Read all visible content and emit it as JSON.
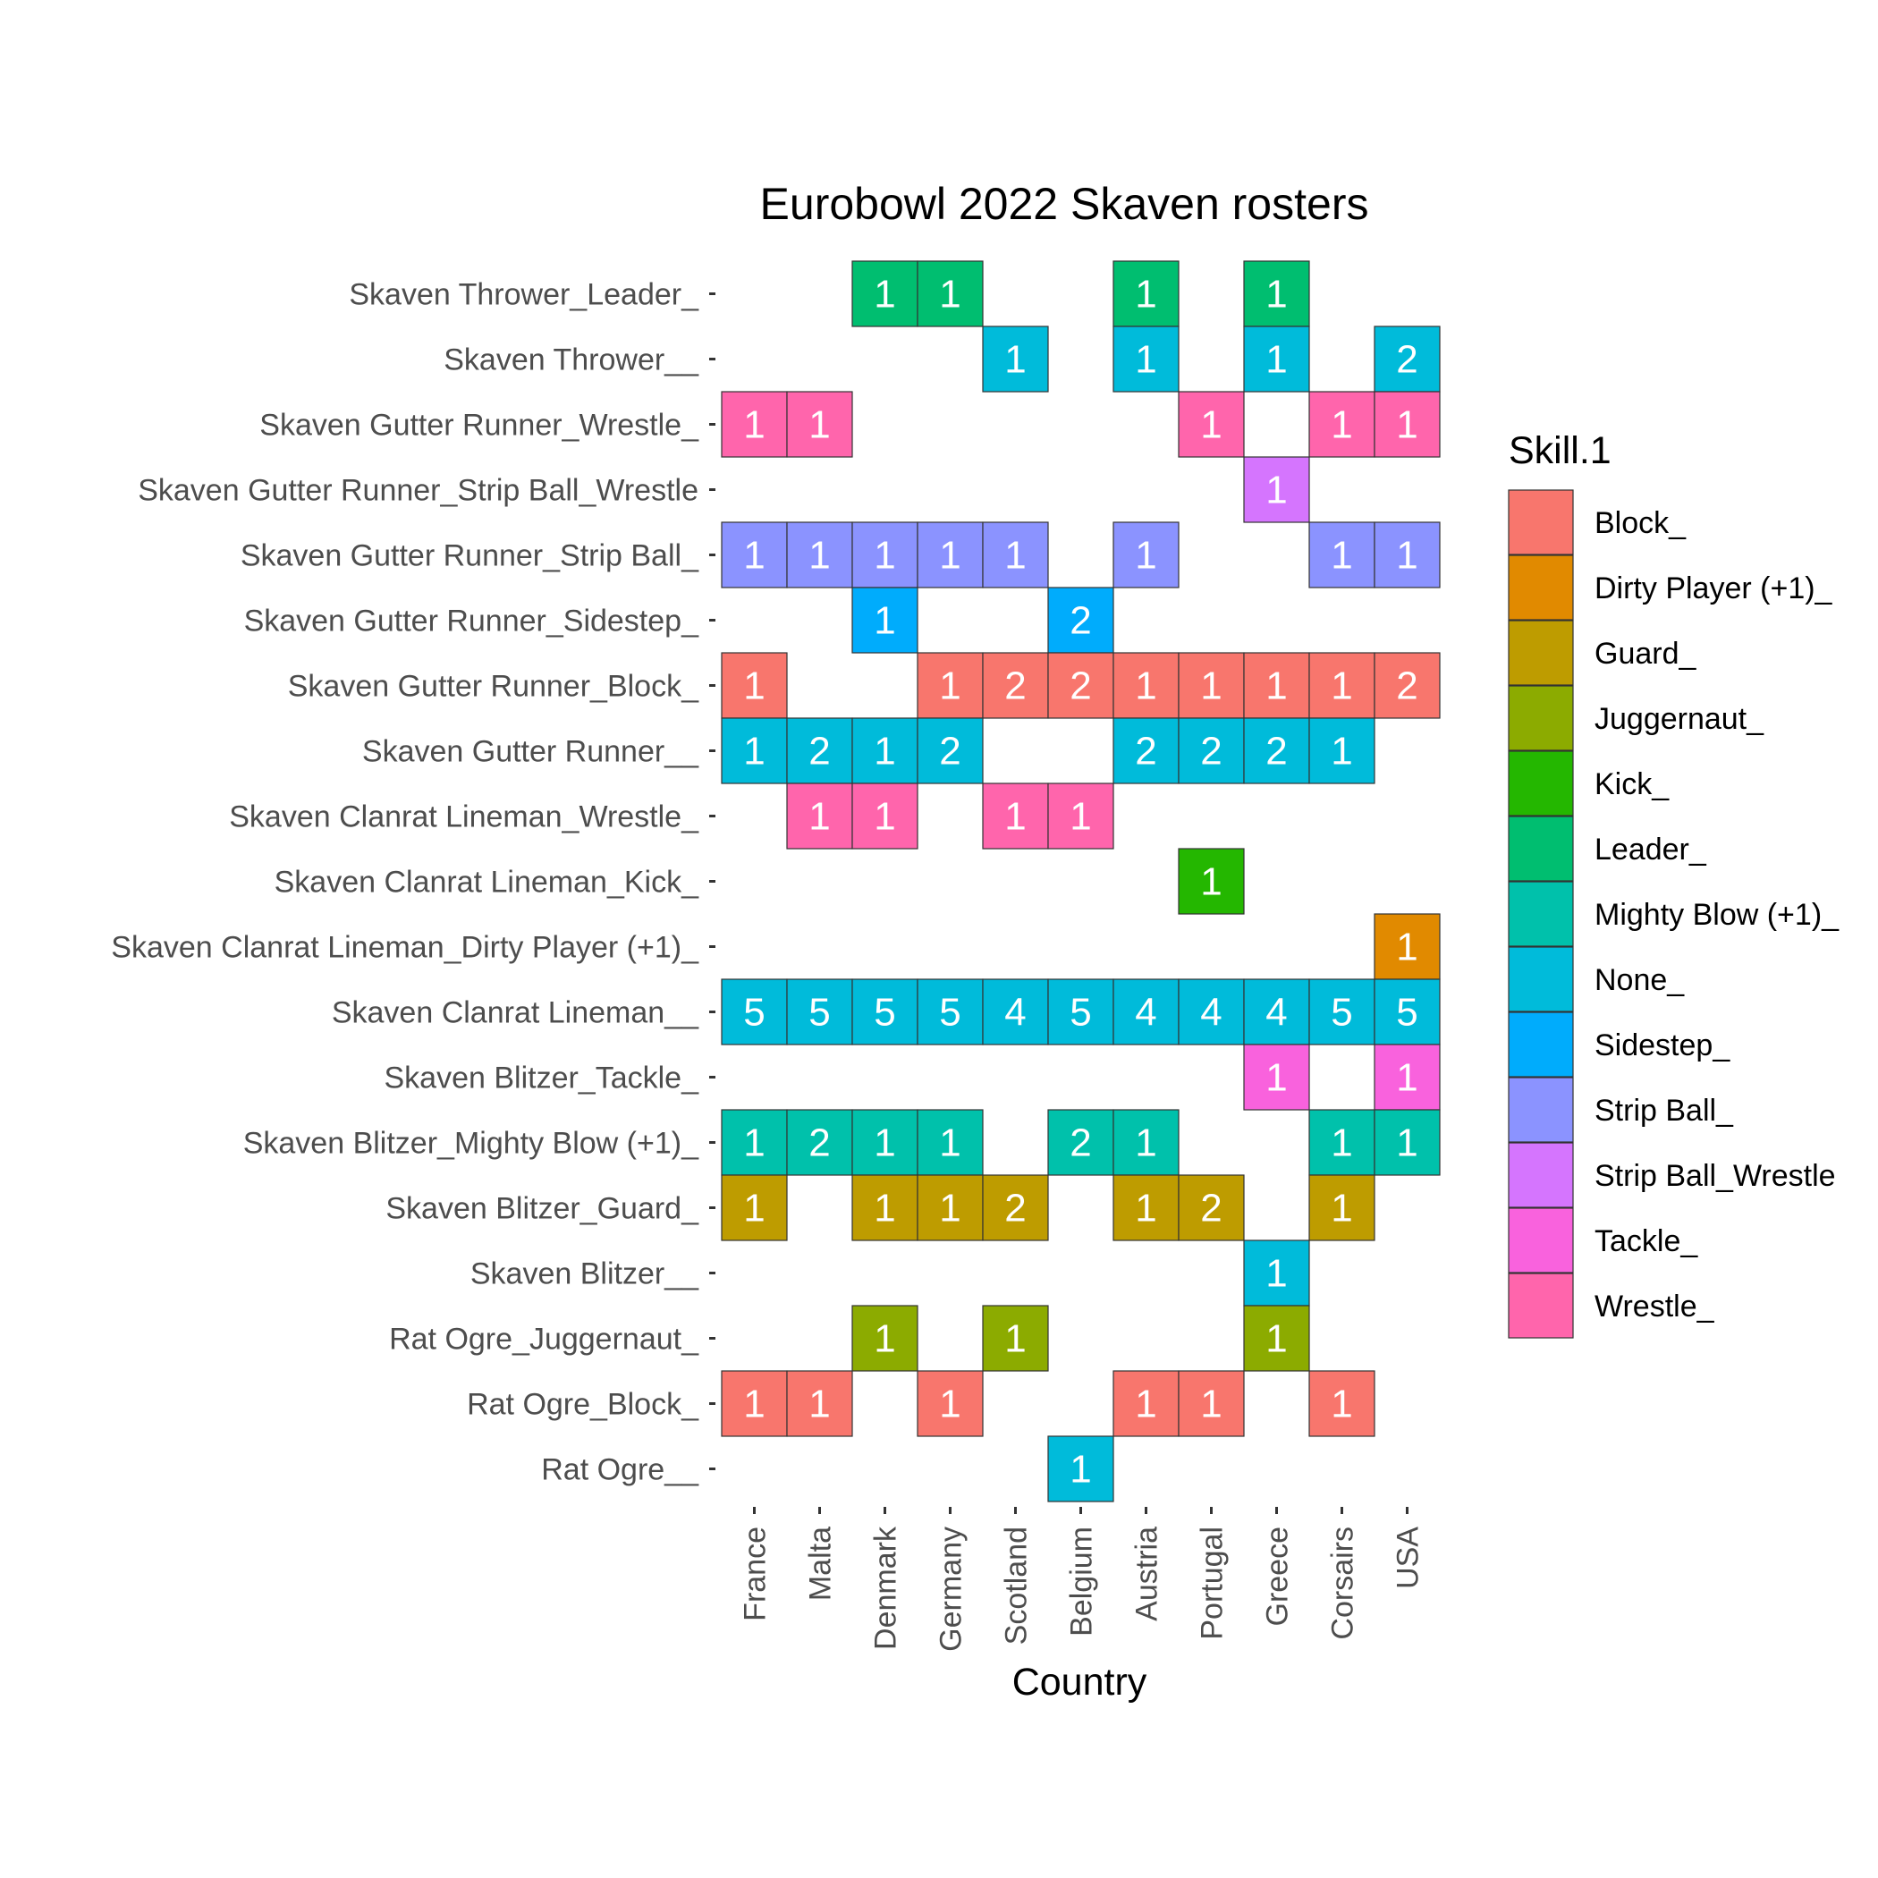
{
  "chart_data": {
    "type": "heatmap",
    "title": "Eurobowl 2022 Skaven rosters",
    "xlabel": "Country",
    "ylabel": "",
    "x_categories": [
      "France",
      "Malta",
      "Denmark",
      "Germany",
      "Scotland",
      "Belgium",
      "Austria",
      "Portugal",
      "Greece",
      "Corsairs",
      "USA"
    ],
    "y_categories": [
      "Skaven Thrower_Leader_",
      "Skaven Thrower__",
      "Skaven Gutter Runner_Wrestle_",
      "Skaven Gutter Runner_Strip Ball_Wrestle",
      "Skaven Gutter Runner_Strip Ball_",
      "Skaven Gutter Runner_Sidestep_",
      "Skaven Gutter Runner_Block_",
      "Skaven Gutter Runner__",
      "Skaven Clanrat Lineman_Wrestle_",
      "Skaven Clanrat Lineman_Kick_",
      "Skaven Clanrat Lineman_Dirty Player (+1)_",
      "Skaven Clanrat Lineman__",
      "Skaven Blitzer_Tackle_",
      "Skaven Blitzer_Mighty Blow (+1)_",
      "Skaven Blitzer_Guard_",
      "Skaven Blitzer__",
      "Rat Ogre_Juggernaut_",
      "Rat Ogre_Block_",
      "Rat Ogre__"
    ],
    "legend": {
      "title": "Skill.1",
      "position": "right",
      "items": [
        {
          "label": "Block_",
          "color": "#F8766D"
        },
        {
          "label": "Dirty Player (+1)_",
          "color": "#E18A00"
        },
        {
          "label": "Guard_",
          "color": "#BE9C00"
        },
        {
          "label": "Juggernaut_",
          "color": "#8CAB00"
        },
        {
          "label": "Kick_",
          "color": "#24B700"
        },
        {
          "label": "Leader_",
          "color": "#00BE70"
        },
        {
          "label": "Mighty Blow (+1)_",
          "color": "#00C1AB"
        },
        {
          "label": "None_",
          "color": "#00BBDA"
        },
        {
          "label": "Sidestep_",
          "color": "#00ACFC"
        },
        {
          "label": "Strip Ball_",
          "color": "#8B93FF"
        },
        {
          "label": "Strip Ball_Wrestle",
          "color": "#D575FE"
        },
        {
          "label": "Tackle_",
          "color": "#F962DD"
        },
        {
          "label": "Wrestle_",
          "color": "#FF65AC"
        }
      ]
    },
    "cells": [
      {
        "row": "Skaven Thrower_Leader_",
        "skill": "Leader_",
        "values": [
          null,
          null,
          1,
          1,
          null,
          null,
          1,
          null,
          1,
          null,
          null
        ]
      },
      {
        "row": "Skaven Thrower__",
        "skill": "None_",
        "values": [
          null,
          null,
          null,
          null,
          1,
          null,
          1,
          null,
          1,
          null,
          2
        ]
      },
      {
        "row": "Skaven Gutter Runner_Wrestle_",
        "skill": "Wrestle_",
        "values": [
          1,
          1,
          null,
          null,
          null,
          null,
          null,
          1,
          null,
          1,
          1
        ]
      },
      {
        "row": "Skaven Gutter Runner_Strip Ball_Wrestle",
        "skill": "Strip Ball_Wrestle",
        "values": [
          null,
          null,
          null,
          null,
          null,
          null,
          null,
          null,
          1,
          null,
          null
        ]
      },
      {
        "row": "Skaven Gutter Runner_Strip Ball_",
        "skill": "Strip Ball_",
        "values": [
          1,
          1,
          1,
          1,
          1,
          null,
          1,
          null,
          null,
          1,
          1
        ]
      },
      {
        "row": "Skaven Gutter Runner_Sidestep_",
        "skill": "Sidestep_",
        "values": [
          null,
          null,
          1,
          null,
          null,
          2,
          null,
          null,
          null,
          null,
          null
        ]
      },
      {
        "row": "Skaven Gutter Runner_Block_",
        "skill": "Block_",
        "values": [
          1,
          null,
          null,
          1,
          2,
          2,
          1,
          1,
          1,
          1,
          2
        ]
      },
      {
        "row": "Skaven Gutter Runner__",
        "skill": "None_",
        "values": [
          1,
          2,
          1,
          2,
          null,
          null,
          2,
          2,
          2,
          1,
          null
        ]
      },
      {
        "row": "Skaven Clanrat Lineman_Wrestle_",
        "skill": "Wrestle_",
        "values": [
          null,
          1,
          1,
          null,
          1,
          1,
          null,
          null,
          null,
          null,
          null
        ]
      },
      {
        "row": "Skaven Clanrat Lineman_Kick_",
        "skill": "Kick_",
        "values": [
          null,
          null,
          null,
          null,
          null,
          null,
          null,
          1,
          null,
          null,
          null
        ]
      },
      {
        "row": "Skaven Clanrat Lineman_Dirty Player (+1)_",
        "skill": "Dirty Player (+1)_",
        "values": [
          null,
          null,
          null,
          null,
          null,
          null,
          null,
          null,
          null,
          null,
          1
        ]
      },
      {
        "row": "Skaven Clanrat Lineman__",
        "skill": "None_",
        "values": [
          5,
          5,
          5,
          5,
          4,
          5,
          4,
          4,
          4,
          5,
          5
        ]
      },
      {
        "row": "Skaven Blitzer_Tackle_",
        "skill": "Tackle_",
        "values": [
          null,
          null,
          null,
          null,
          null,
          null,
          null,
          null,
          1,
          null,
          1
        ]
      },
      {
        "row": "Skaven Blitzer_Mighty Blow (+1)_",
        "skill": "Mighty Blow (+1)_",
        "values": [
          1,
          2,
          1,
          1,
          null,
          2,
          1,
          null,
          null,
          1,
          1
        ]
      },
      {
        "row": "Skaven Blitzer_Guard_",
        "skill": "Guard_",
        "values": [
          1,
          null,
          1,
          1,
          2,
          null,
          1,
          2,
          null,
          1,
          null
        ]
      },
      {
        "row": "Skaven Blitzer__",
        "skill": "None_",
        "values": [
          null,
          null,
          null,
          null,
          null,
          null,
          null,
          null,
          1,
          null,
          null
        ]
      },
      {
        "row": "Rat Ogre_Juggernaut_",
        "skill": "Juggernaut_",
        "values": [
          null,
          null,
          1,
          null,
          1,
          null,
          null,
          null,
          1,
          null,
          null
        ]
      },
      {
        "row": "Rat Ogre_Block_",
        "skill": "Block_",
        "values": [
          1,
          1,
          null,
          1,
          null,
          null,
          1,
          1,
          null,
          1,
          null
        ]
      },
      {
        "row": "Rat Ogre__",
        "skill": "None_",
        "values": [
          null,
          null,
          null,
          null,
          null,
          1,
          null,
          null,
          null,
          null,
          null
        ]
      }
    ]
  }
}
